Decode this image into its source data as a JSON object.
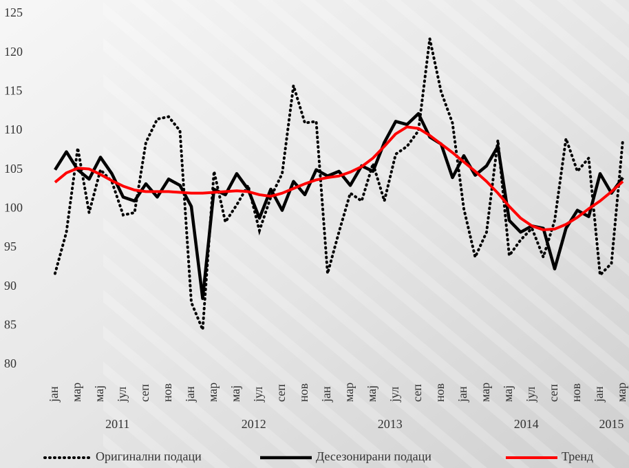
{
  "chart_data": {
    "type": "line",
    "categories": [
      "јан",
      null,
      "мар",
      null,
      "мај",
      null,
      "јул",
      null,
      "сеп",
      null,
      "нов",
      null,
      "јан",
      null,
      "мар",
      null,
      "мај",
      null,
      "јул",
      null,
      "сеп",
      null,
      "нов",
      null,
      "јан",
      null,
      "мар",
      null,
      "мај",
      null,
      "јул",
      null,
      "сеп",
      null,
      "нов",
      null,
      "јан",
      null,
      "мар",
      null,
      "мај",
      null,
      "јул",
      null,
      "сеп",
      null,
      "нов",
      null,
      "јан",
      null,
      "мар"
    ],
    "years": [
      "2011",
      "2012",
      "2013",
      "2014",
      "2015"
    ],
    "ylim": [
      80,
      125
    ],
    "yticks": [
      80,
      85,
      90,
      95,
      100,
      105,
      110,
      115,
      120,
      125
    ],
    "grid": false,
    "legend": "bottom",
    "series": [
      {
        "name": "Оригинални подаци",
        "color": "#000000",
        "dash": "dotted",
        "values": [
          91.7,
          97,
          107.8,
          99.5,
          105,
          103.5,
          99.2,
          99.5,
          108.5,
          111.5,
          111.8,
          110,
          88,
          84.5,
          104.8,
          98.3,
          100.5,
          103,
          97.2,
          101.5,
          104.5,
          115.8,
          111,
          111.2,
          91.7,
          97,
          102,
          101,
          105.8,
          101,
          107,
          108,
          110,
          121.8,
          115,
          111,
          100,
          93.8,
          97,
          108.8,
          94,
          96,
          97.5,
          93.8,
          98.5,
          109,
          104.8,
          106.5,
          91.5,
          93,
          108.8
        ]
      },
      {
        "name": "Десезонирани подаци",
        "color": "#000000",
        "dash": "solid",
        "values": [
          105,
          107.3,
          105,
          103.8,
          106.6,
          104.5,
          101.5,
          101,
          103.2,
          101.5,
          103.8,
          103,
          100.3,
          88.5,
          102.5,
          101.8,
          104.5,
          102.5,
          98.8,
          102.5,
          99.8,
          103.5,
          101.8,
          105,
          104.2,
          104.8,
          103,
          105.5,
          104.8,
          108.5,
          111.2,
          110.8,
          112.2,
          109.2,
          108.3,
          104,
          106.8,
          104.3,
          105.5,
          108,
          98.5,
          97,
          97.8,
          97.5,
          92.3,
          97.5,
          99.8,
          99,
          104.5,
          102,
          104
        ]
      },
      {
        "name": "Тренд",
        "color": "#ff0000",
        "dash": "solid",
        "values": [
          103.4,
          104.6,
          105.2,
          105.1,
          104.4,
          103.6,
          102.9,
          102.4,
          102.2,
          102.2,
          102.2,
          102.1,
          102,
          102,
          102.1,
          102.2,
          102.3,
          102.2,
          101.8,
          101.6,
          102,
          102.6,
          103.2,
          103.7,
          104,
          104.2,
          104.7,
          105.4,
          106.5,
          108,
          109.6,
          110.5,
          110.3,
          109.4,
          108.3,
          107.2,
          106,
          104.8,
          103.5,
          102,
          100.3,
          98.8,
          97.8,
          97.3,
          97.4,
          98,
          98.9,
          100,
          101,
          102.2,
          103.5
        ]
      }
    ]
  }
}
